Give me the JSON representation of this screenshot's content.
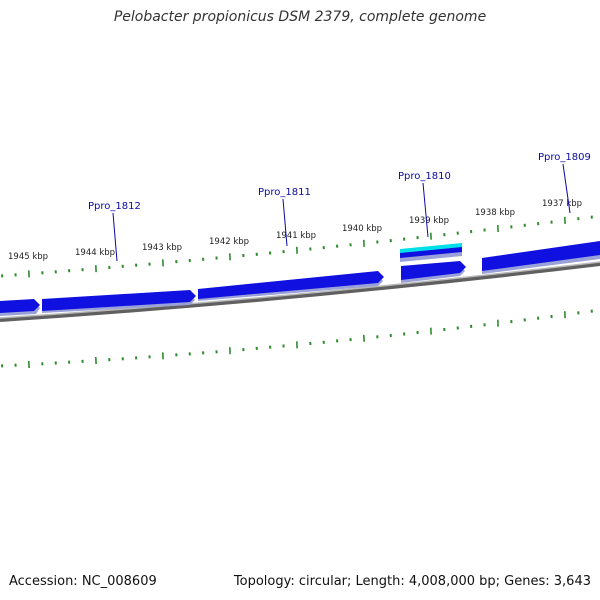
{
  "title": "Pelobacter propionicus DSM 2379, complete genome",
  "footer": {
    "accession": "Accession: NC_008609",
    "summary": "Topology: circular; Length: 4,008,000 bp; Genes: 3,643"
  },
  "scale_labels": [
    "1945 kbp",
    "1944 kbp",
    "1943 kbp",
    "1942 kbp",
    "1941 kbp",
    "1940 kbp",
    "1939 kbp",
    "1938 kbp",
    "1937 kbp"
  ],
  "genes": [
    {
      "label": "Ppro_1812"
    },
    {
      "label": "Ppro_1811"
    },
    {
      "label": "Ppro_1810"
    },
    {
      "label": "Ppro_1809"
    }
  ],
  "colors": {
    "gene": "#1010e0",
    "gene_shadow": "#9aa0d8",
    "backbone": "#808080",
    "tick": "#2e8b2e",
    "highlight": "#00e0e8",
    "label": "#0a0aa0"
  }
}
